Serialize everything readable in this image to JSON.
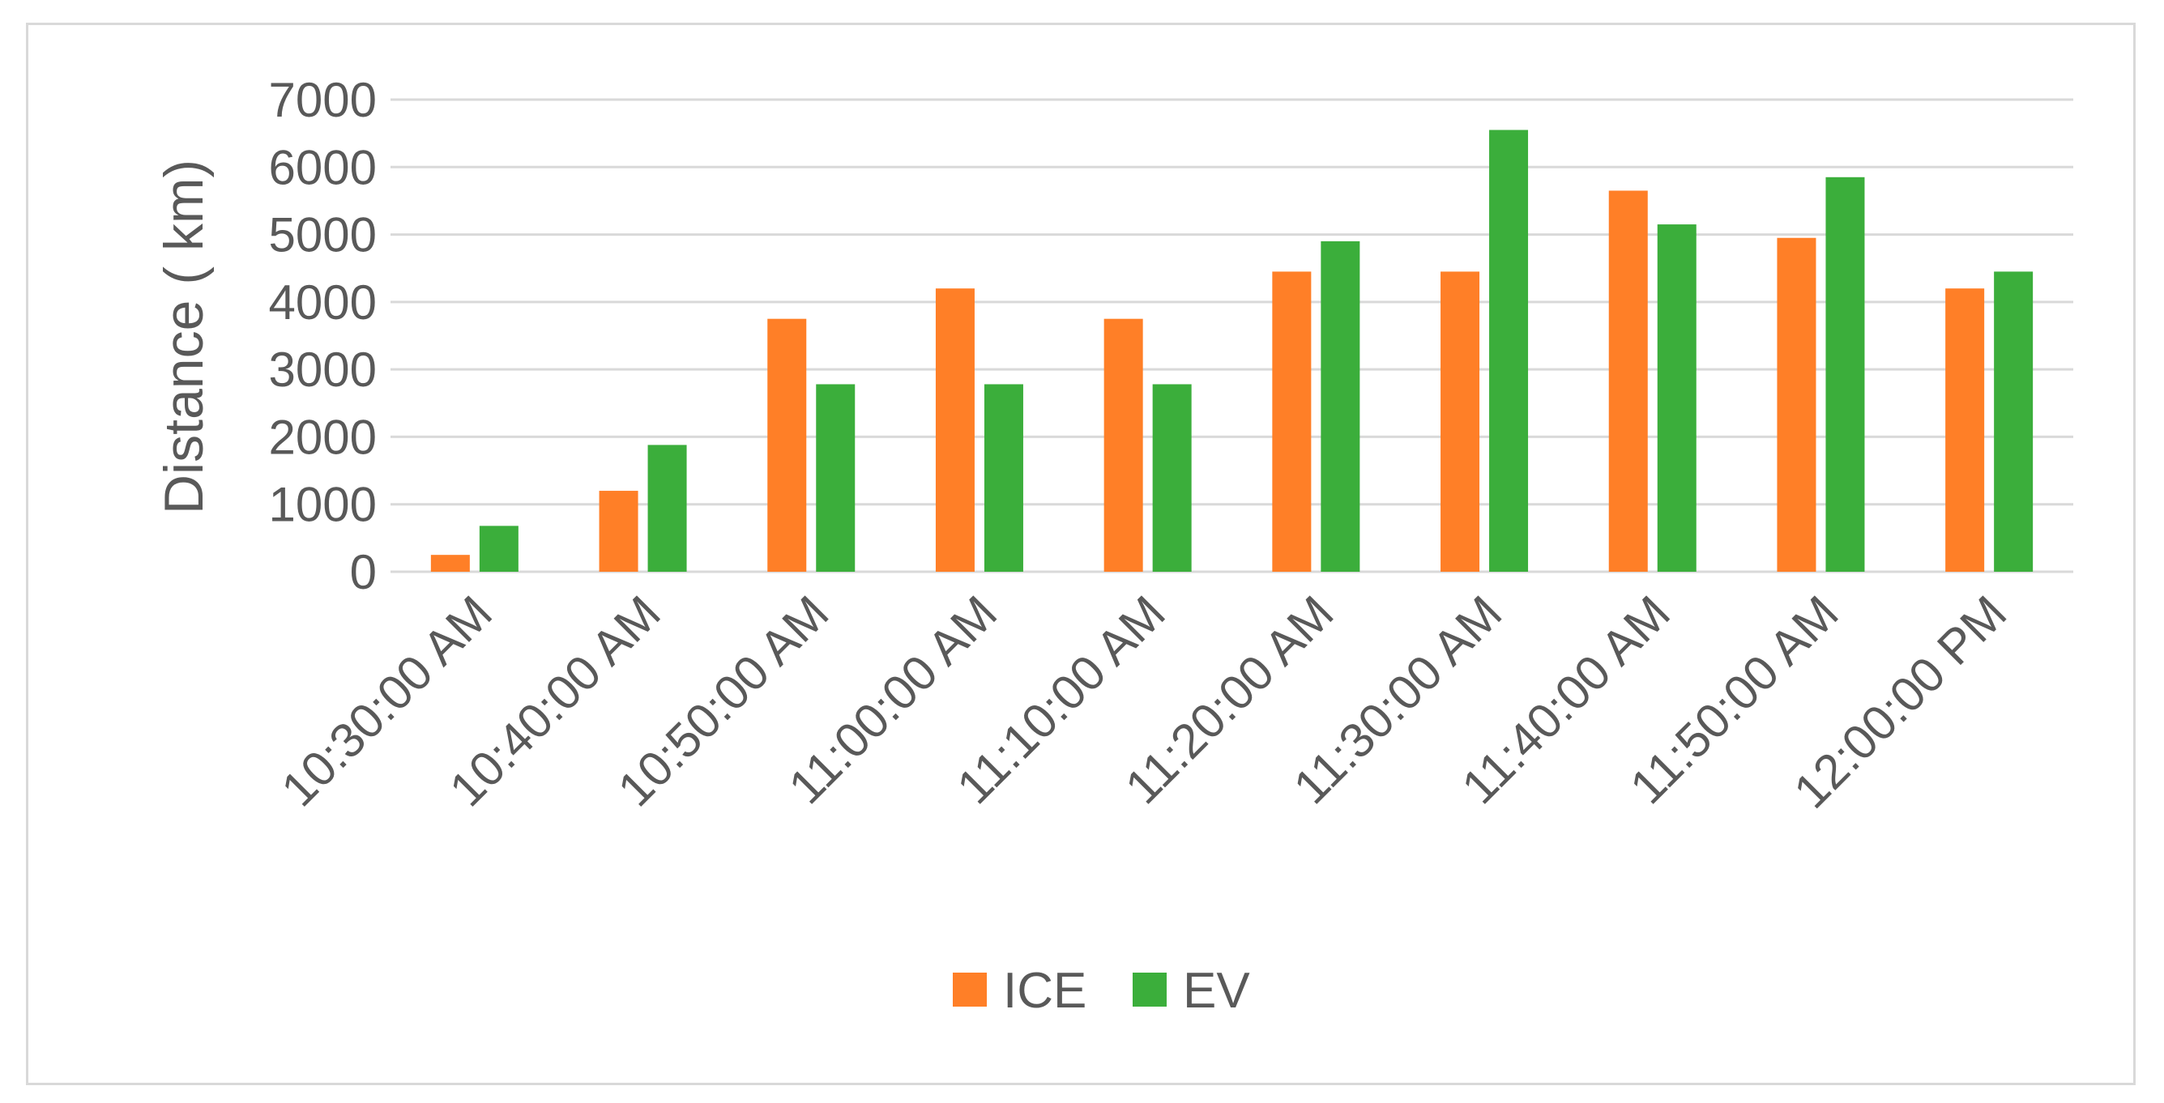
{
  "chart_data": {
    "type": "bar",
    "title": "",
    "xlabel": "",
    "ylabel": "Distance ( km)",
    "ylim": [
      0,
      7000
    ],
    "yticks": [
      "0",
      "1000",
      "2000",
      "3000",
      "4000",
      "5000",
      "6000",
      "7000"
    ],
    "grid": true,
    "legend_position": "bottom-center",
    "categories": [
      "10:30:00 AM",
      "10:40:00 AM",
      "10:50:00 AM",
      "11:00:00 AM",
      "11:10:00 AM",
      "11:20:00 AM",
      "11:30:00 AM",
      "11:40:00 AM",
      "11:50:00 AM",
      "12:00:00 PM"
    ],
    "series": [
      {
        "name": "ICE",
        "color": "#FF7F27",
        "values": [
          250,
          1200,
          3750,
          4200,
          3750,
          4450,
          4450,
          5650,
          4950,
          4200
        ]
      },
      {
        "name": "EV",
        "color": "#3BAE3B",
        "values": [
          680,
          1880,
          2780,
          2780,
          2780,
          4900,
          6550,
          5150,
          5850,
          4450
        ]
      }
    ],
    "gridline_color": "#d9d9d9"
  }
}
